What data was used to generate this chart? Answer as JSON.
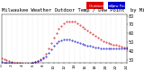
{
  "title": "Milwaukee Weather Outdoor Temp / Dew Point  by Minute  (24 Hours) (Alternate)",
  "temp_color": "#dd0000",
  "dew_color": "#0000cc",
  "background_color": "#ffffff",
  "plot_bg": "#ffffff",
  "grid_color": "#bbbbbb",
  "ylim": [
    27,
    82
  ],
  "xlim": [
    0,
    1440
  ],
  "yticks": [
    30,
    40,
    50,
    60,
    70,
    80
  ],
  "xtick_step": 60,
  "temp_data": [
    [
      0,
      32
    ],
    [
      30,
      31
    ],
    [
      60,
      30
    ],
    [
      90,
      29
    ],
    [
      120,
      28
    ],
    [
      150,
      27
    ],
    [
      180,
      27
    ],
    [
      210,
      27
    ],
    [
      240,
      26
    ],
    [
      270,
      26
    ],
    [
      300,
      26
    ],
    [
      330,
      26
    ],
    [
      360,
      27
    ],
    [
      390,
      28
    ],
    [
      420,
      29
    ],
    [
      450,
      31
    ],
    [
      480,
      33
    ],
    [
      510,
      37
    ],
    [
      540,
      43
    ],
    [
      570,
      49
    ],
    [
      600,
      55
    ],
    [
      630,
      60
    ],
    [
      660,
      65
    ],
    [
      690,
      68
    ],
    [
      720,
      71
    ],
    [
      750,
      73
    ],
    [
      780,
      74
    ],
    [
      810,
      74
    ],
    [
      840,
      73
    ],
    [
      870,
      71
    ],
    [
      900,
      69
    ],
    [
      930,
      67
    ],
    [
      960,
      65
    ],
    [
      990,
      63
    ],
    [
      1020,
      61
    ],
    [
      1050,
      59
    ],
    [
      1080,
      57
    ],
    [
      1110,
      55
    ],
    [
      1140,
      53
    ],
    [
      1170,
      51
    ],
    [
      1200,
      50
    ],
    [
      1230,
      49
    ],
    [
      1260,
      48
    ],
    [
      1290,
      47
    ],
    [
      1320,
      47
    ],
    [
      1350,
      46
    ],
    [
      1380,
      45
    ],
    [
      1410,
      44
    ],
    [
      1440,
      44
    ]
  ],
  "dew_data": [
    [
      0,
      28
    ],
    [
      30,
      27
    ],
    [
      60,
      27
    ],
    [
      90,
      27
    ],
    [
      120,
      27
    ],
    [
      150,
      26
    ],
    [
      180,
      26
    ],
    [
      210,
      26
    ],
    [
      240,
      26
    ],
    [
      270,
      26
    ],
    [
      300,
      26
    ],
    [
      330,
      26
    ],
    [
      360,
      27
    ],
    [
      390,
      28
    ],
    [
      420,
      29
    ],
    [
      450,
      30
    ],
    [
      480,
      32
    ],
    [
      510,
      34
    ],
    [
      540,
      38
    ],
    [
      570,
      42
    ],
    [
      600,
      46
    ],
    [
      630,
      49
    ],
    [
      660,
      51
    ],
    [
      690,
      52
    ],
    [
      720,
      53
    ],
    [
      750,
      53
    ],
    [
      780,
      53
    ],
    [
      810,
      52
    ],
    [
      840,
      51
    ],
    [
      870,
      50
    ],
    [
      900,
      49
    ],
    [
      930,
      48
    ],
    [
      960,
      47
    ],
    [
      990,
      46
    ],
    [
      1020,
      46
    ],
    [
      1050,
      45
    ],
    [
      1080,
      44
    ],
    [
      1110,
      44
    ],
    [
      1140,
      43
    ],
    [
      1170,
      43
    ],
    [
      1200,
      43
    ],
    [
      1230,
      43
    ],
    [
      1260,
      43
    ],
    [
      1290,
      43
    ],
    [
      1320,
      43
    ],
    [
      1350,
      43
    ],
    [
      1380,
      43
    ],
    [
      1410,
      43
    ],
    [
      1440,
      43
    ]
  ],
  "title_fontsize": 4,
  "tick_fontsize": 3.5,
  "marker_size": 0.8,
  "legend_label_temp": "Outdoor Temp",
  "legend_label_dew": "Dew Point",
  "legend_color_temp": "#dd0000",
  "legend_color_dew": "#0000cc",
  "legend_box_temp": "#dd0000",
  "legend_box_dew": "#0000cc"
}
